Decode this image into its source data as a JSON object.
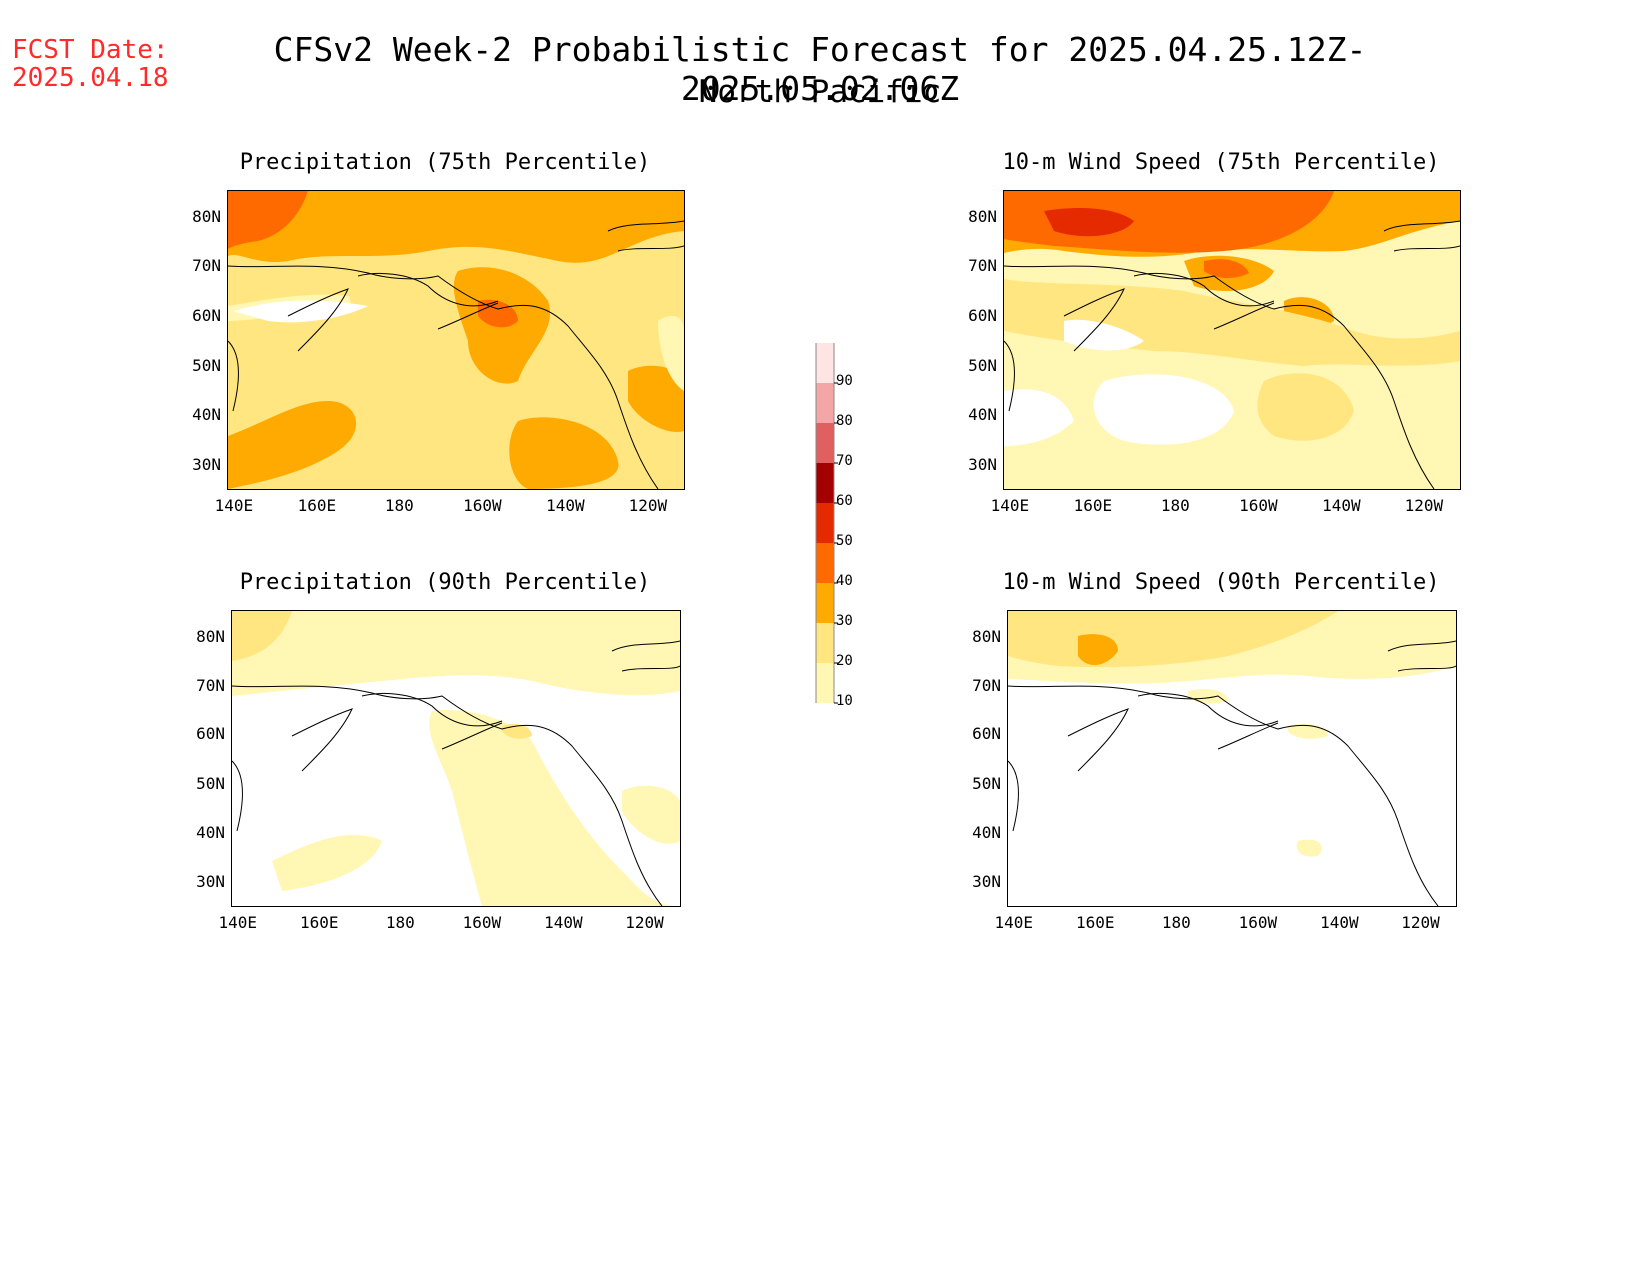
{
  "header": {
    "fcst_label": "FCST Date:",
    "fcst_date": "2025.04.18",
    "title": "CFSv2 Week-2 Probabilistic Forecast for 2025.04.25.12Z-2025.05.02.06Z",
    "subtitle": "North Pacific"
  },
  "axes": {
    "lat_labels": [
      "80N",
      "70N",
      "60N",
      "50N",
      "40N",
      "30N"
    ],
    "lon_labels": [
      "140E",
      "160E",
      "180",
      "160W",
      "140W",
      "120W"
    ]
  },
  "panels": [
    {
      "id": "precip75",
      "title": "Precipitation (75th Percentile)"
    },
    {
      "id": "wind75",
      "title": "10-m Wind Speed (75th Percentile)"
    },
    {
      "id": "precip90",
      "title": "Precipitation (90th Percentile)"
    },
    {
      "id": "wind90",
      "title": "10-m Wind Speed (90th Percentile)"
    }
  ],
  "colorbar": {
    "levels": [
      "10",
      "20",
      "30",
      "40",
      "50",
      "60",
      "70",
      "80",
      "90"
    ],
    "colors": [
      "#fff7b3",
      "#ffe680",
      "#ffaa00",
      "#ff6a00",
      "#e62a00",
      "#a30000",
      "#e06060",
      "#f4a6a6",
      "#ffe4e4"
    ]
  },
  "palette": {
    "light_yellow": "#fff7b3",
    "yellow": "#ffe680",
    "orange": "#ffaa00",
    "dark_orange": "#ff6a00",
    "red": "#e62a00",
    "dark_red": "#a30000",
    "title_red": "#ff2a2a"
  }
}
